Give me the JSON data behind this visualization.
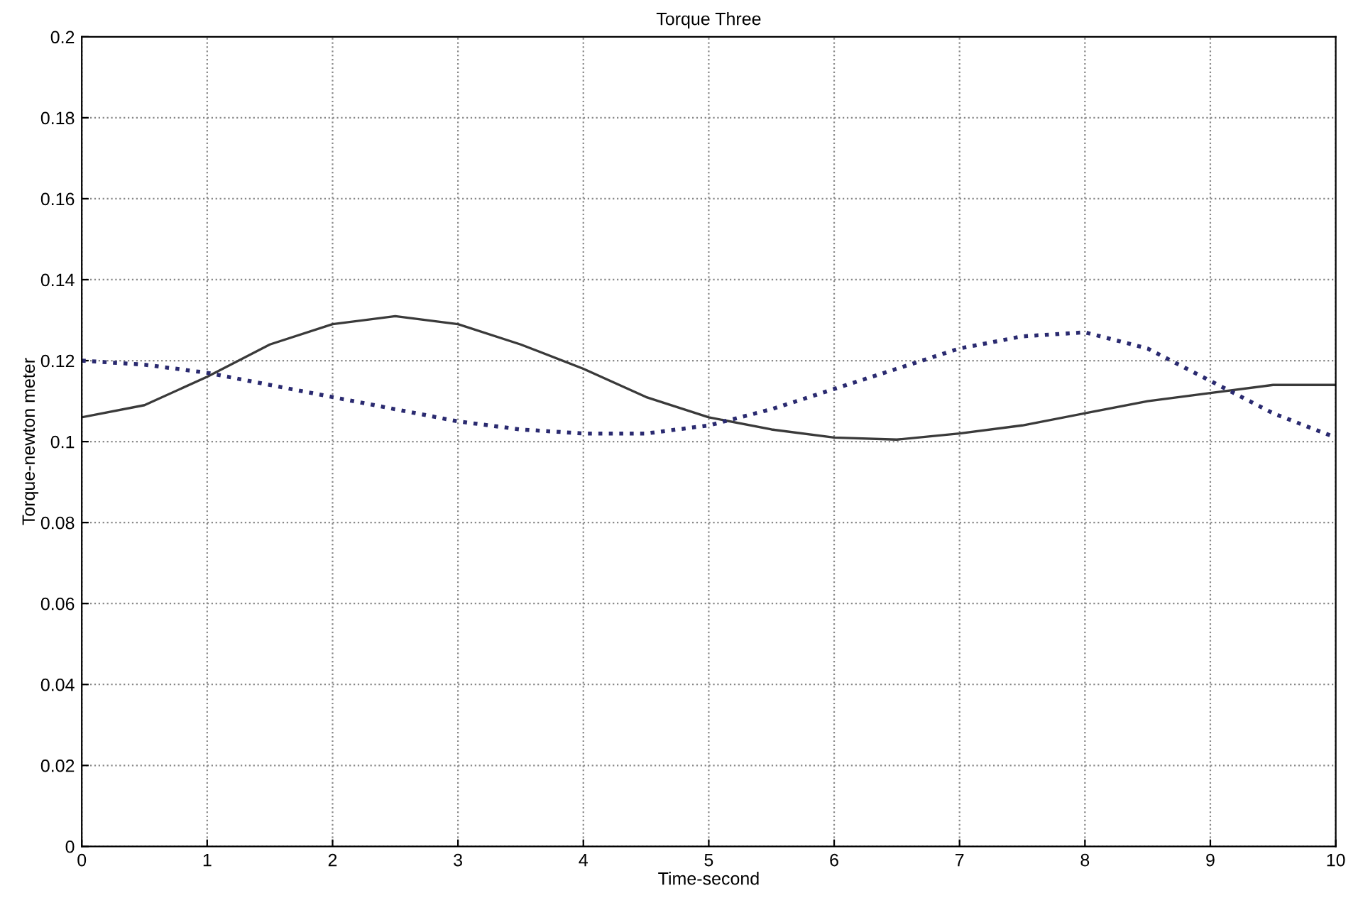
{
  "chart_data": {
    "type": "line",
    "title": "Torque Three",
    "xlabel": "Time-second",
    "ylabel": "Torque-newton meter",
    "x": [
      0,
      0.5,
      1,
      1.5,
      2,
      2.5,
      3,
      3.5,
      4,
      4.5,
      5,
      5.5,
      6,
      6.5,
      7,
      7.5,
      8,
      8.5,
      9,
      9.5,
      10
    ],
    "series": [
      {
        "color": "#3a3a3a",
        "line_style": "solid",
        "values": [
          0.106,
          0.109,
          0.116,
          0.124,
          0.129,
          0.131,
          0.129,
          0.124,
          0.118,
          0.111,
          0.106,
          0.103,
          0.101,
          0.1005,
          0.102,
          0.104,
          0.107,
          0.11,
          0.112,
          0.114,
          0.114
        ]
      },
      {
        "color": "#2a2a70",
        "line_style": "dotted",
        "values": [
          0.12,
          0.119,
          0.117,
          0.114,
          0.111,
          0.108,
          0.105,
          0.103,
          0.102,
          0.102,
          0.104,
          0.108,
          0.113,
          0.118,
          0.123,
          0.126,
          0.127,
          0.123,
          0.115,
          0.107,
          0.101
        ]
      }
    ],
    "xlim": [
      0,
      10
    ],
    "xticks": [
      0,
      1,
      2,
      3,
      4,
      5,
      6,
      7,
      8,
      9,
      10
    ],
    "ylim": [
      0,
      0.2
    ],
    "yticks": [
      0,
      0.02,
      0.04,
      0.06,
      0.08,
      0.1,
      0.12,
      0.14,
      0.16,
      0.18,
      0.2
    ],
    "grid": true
  }
}
